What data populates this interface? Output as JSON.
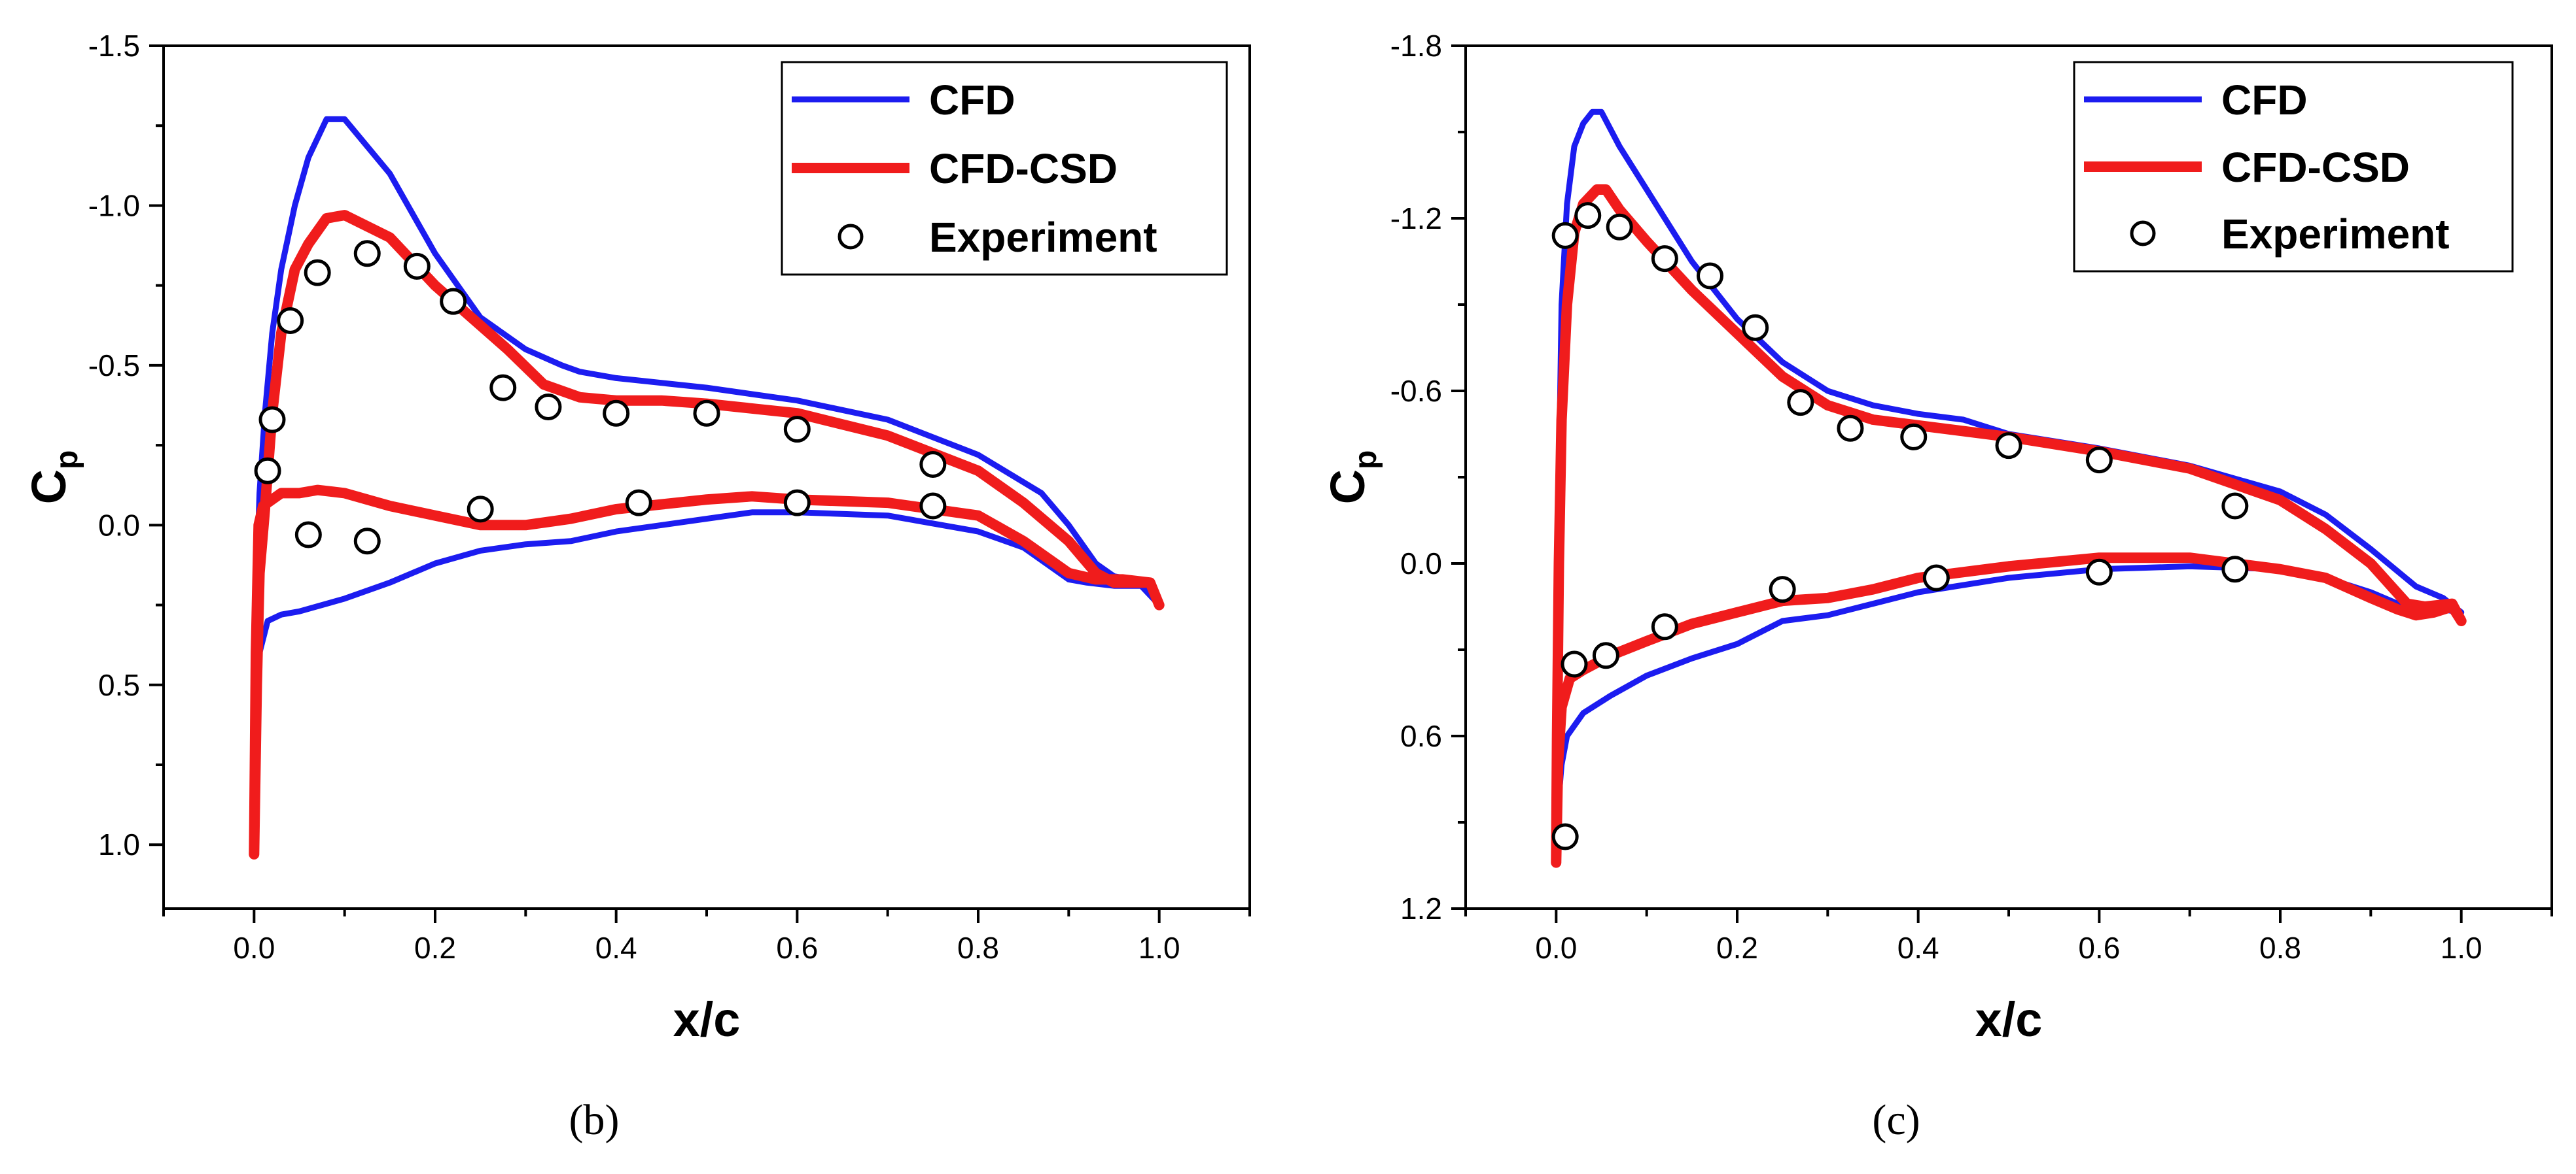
{
  "figure": {
    "colors": {
      "cfd": "#1c1cf0",
      "cfd_csd": "#f01c1c",
      "marker_fill": "#ffffff",
      "axis": "#000000"
    }
  },
  "chart_data": [
    {
      "type": "line",
      "panel_label": "(b)",
      "xlabel": "x/c",
      "ylabel_main": "C",
      "ylabel_sub": "p",
      "xlim": [
        -0.1,
        1.1
      ],
      "ylim": [
        1.2,
        -1.5
      ],
      "y_inverted": true,
      "x_ticks": [
        0.0,
        0.2,
        0.4,
        0.6,
        0.8,
        1.0
      ],
      "x_tick_labels": [
        "0.0",
        "0.2",
        "0.4",
        "0.6",
        "0.8",
        "1.0"
      ],
      "y_ticks": [
        -1.5,
        -1.0,
        -0.5,
        0.0,
        0.5,
        1.0
      ],
      "y_tick_labels": [
        "-1.5",
        "-1.0",
        "-0.5",
        "0.0",
        "0.5",
        "1.0"
      ],
      "legend": {
        "position": "top-right",
        "entries": [
          "CFD",
          "CFD-CSD",
          "Experiment"
        ]
      },
      "series": [
        {
          "name": "CFD",
          "kind": "line",
          "color": "#1c1cf0",
          "points": [
            [
              1.0,
              0.25
            ],
            [
              0.99,
              0.2
            ],
            [
              0.97,
              0.17
            ],
            [
              0.95,
              0.16
            ],
            [
              0.93,
              0.12
            ],
            [
              0.9,
              0.0
            ],
            [
              0.87,
              -0.1
            ],
            [
              0.8,
              -0.22
            ],
            [
              0.7,
              -0.33
            ],
            [
              0.6,
              -0.39
            ],
            [
              0.5,
              -0.43
            ],
            [
              0.4,
              -0.46
            ],
            [
              0.36,
              -0.48
            ],
            [
              0.34,
              -0.5
            ],
            [
              0.3,
              -0.55
            ],
            [
              0.25,
              -0.65
            ],
            [
              0.2,
              -0.85
            ],
            [
              0.15,
              -1.1
            ],
            [
              0.1,
              -1.27
            ],
            [
              0.08,
              -1.27
            ],
            [
              0.06,
              -1.15
            ],
            [
              0.045,
              -1.0
            ],
            [
              0.03,
              -0.8
            ],
            [
              0.02,
              -0.6
            ],
            [
              0.012,
              -0.35
            ],
            [
              0.006,
              -0.1
            ],
            [
              0.003,
              0.15
            ],
            [
              0.001,
              0.5
            ],
            [
              0.0,
              1.02
            ],
            [
              0.002,
              0.6
            ],
            [
              0.006,
              0.4
            ],
            [
              0.015,
              0.3
            ],
            [
              0.03,
              0.28
            ],
            [
              0.05,
              0.27
            ],
            [
              0.1,
              0.23
            ],
            [
              0.15,
              0.18
            ],
            [
              0.2,
              0.12
            ],
            [
              0.25,
              0.08
            ],
            [
              0.3,
              0.06
            ],
            [
              0.35,
              0.05
            ],
            [
              0.4,
              0.02
            ],
            [
              0.5,
              -0.02
            ],
            [
              0.55,
              -0.04
            ],
            [
              0.6,
              -0.04
            ],
            [
              0.7,
              -0.03
            ],
            [
              0.8,
              0.02
            ],
            [
              0.85,
              0.07
            ],
            [
              0.9,
              0.17
            ],
            [
              0.92,
              0.18
            ],
            [
              0.95,
              0.19
            ],
            [
              0.98,
              0.19
            ],
            [
              1.0,
              0.25
            ]
          ]
        },
        {
          "name": "CFD-CSD",
          "kind": "line",
          "color": "#f01c1c",
          "points": [
            [
              1.0,
              0.25
            ],
            [
              0.99,
              0.18
            ],
            [
              0.95,
              0.18
            ],
            [
              0.93,
              0.15
            ],
            [
              0.9,
              0.05
            ],
            [
              0.85,
              -0.07
            ],
            [
              0.8,
              -0.17
            ],
            [
              0.7,
              -0.28
            ],
            [
              0.6,
              -0.35
            ],
            [
              0.5,
              -0.38
            ],
            [
              0.45,
              -0.39
            ],
            [
              0.4,
              -0.39
            ],
            [
              0.36,
              -0.4
            ],
            [
              0.32,
              -0.44
            ],
            [
              0.28,
              -0.55
            ],
            [
              0.24,
              -0.65
            ],
            [
              0.2,
              -0.75
            ],
            [
              0.15,
              -0.9
            ],
            [
              0.1,
              -0.97
            ],
            [
              0.08,
              -0.96
            ],
            [
              0.06,
              -0.88
            ],
            [
              0.045,
              -0.8
            ],
            [
              0.03,
              -0.6
            ],
            [
              0.02,
              -0.35
            ],
            [
              0.012,
              -0.05
            ],
            [
              0.006,
              0.15
            ],
            [
              0.003,
              0.5
            ],
            [
              0.0,
              1.03
            ],
            [
              0.002,
              0.4
            ],
            [
              0.005,
              0.0
            ],
            [
              0.01,
              -0.06
            ],
            [
              0.03,
              -0.1
            ],
            [
              0.05,
              -0.1
            ],
            [
              0.07,
              -0.11
            ],
            [
              0.1,
              -0.1
            ],
            [
              0.15,
              -0.06
            ],
            [
              0.2,
              -0.03
            ],
            [
              0.25,
              0.0
            ],
            [
              0.3,
              0.0
            ],
            [
              0.35,
              -0.02
            ],
            [
              0.4,
              -0.05
            ],
            [
              0.5,
              -0.08
            ],
            [
              0.55,
              -0.09
            ],
            [
              0.6,
              -0.08
            ],
            [
              0.7,
              -0.07
            ],
            [
              0.8,
              -0.03
            ],
            [
              0.85,
              0.05
            ],
            [
              0.9,
              0.15
            ],
            [
              0.93,
              0.17
            ],
            [
              0.96,
              0.17
            ],
            [
              0.99,
              0.18
            ],
            [
              1.0,
              0.25
            ]
          ]
        },
        {
          "name": "Experiment",
          "kind": "markers",
          "color": "#000000",
          "points": [
            [
              0.015,
              -0.17
            ],
            [
              0.02,
              -0.33
            ],
            [
              0.04,
              -0.64
            ],
            [
              0.07,
              -0.79
            ],
            [
              0.125,
              -0.85
            ],
            [
              0.18,
              -0.81
            ],
            [
              0.22,
              -0.7
            ],
            [
              0.275,
              -0.43
            ],
            [
              0.325,
              -0.37
            ],
            [
              0.4,
              -0.35
            ],
            [
              0.5,
              -0.35
            ],
            [
              0.6,
              -0.3
            ],
            [
              0.75,
              -0.19
            ],
            [
              0.06,
              0.03
            ],
            [
              0.125,
              0.05
            ],
            [
              0.25,
              -0.05
            ],
            [
              0.425,
              -0.07
            ],
            [
              0.6,
              -0.07
            ],
            [
              0.75,
              -0.06
            ]
          ]
        }
      ]
    },
    {
      "type": "line",
      "panel_label": "(c)",
      "xlabel": "x/c",
      "ylabel_main": "C",
      "ylabel_sub": "p",
      "xlim": [
        -0.1,
        1.1
      ],
      "ylim": [
        1.2,
        -1.8
      ],
      "y_inverted": true,
      "x_ticks": [
        0.0,
        0.2,
        0.4,
        0.6,
        0.8,
        1.0
      ],
      "x_tick_labels": [
        "0.0",
        "0.2",
        "0.4",
        "0.6",
        "0.8",
        "1.0"
      ],
      "y_ticks": [
        -1.8,
        -1.2,
        -0.6,
        0.0,
        0.6,
        1.2
      ],
      "y_tick_labels": [
        "-1.8",
        "-1.2",
        "-0.6",
        "0.0",
        "0.6",
        "1.2"
      ],
      "legend": {
        "position": "top-right",
        "entries": [
          "CFD",
          "CFD-CSD",
          "Experiment"
        ]
      },
      "series": [
        {
          "name": "CFD",
          "kind": "line",
          "color": "#1c1cf0",
          "points": [
            [
              1.0,
              0.17
            ],
            [
              0.98,
              0.12
            ],
            [
              0.95,
              0.08
            ],
            [
              0.9,
              -0.05
            ],
            [
              0.85,
              -0.17
            ],
            [
              0.8,
              -0.25
            ],
            [
              0.7,
              -0.34
            ],
            [
              0.6,
              -0.4
            ],
            [
              0.5,
              -0.45
            ],
            [
              0.45,
              -0.5
            ],
            [
              0.4,
              -0.52
            ],
            [
              0.35,
              -0.55
            ],
            [
              0.3,
              -0.6
            ],
            [
              0.25,
              -0.7
            ],
            [
              0.2,
              -0.85
            ],
            [
              0.15,
              -1.05
            ],
            [
              0.1,
              -1.3
            ],
            [
              0.07,
              -1.45
            ],
            [
              0.05,
              -1.57
            ],
            [
              0.04,
              -1.57
            ],
            [
              0.03,
              -1.53
            ],
            [
              0.02,
              -1.45
            ],
            [
              0.012,
              -1.25
            ],
            [
              0.006,
              -0.9
            ],
            [
              0.003,
              -0.3
            ],
            [
              0.001,
              0.3
            ],
            [
              0.0,
              1.0
            ],
            [
              0.002,
              0.85
            ],
            [
              0.006,
              0.7
            ],
            [
              0.012,
              0.6
            ],
            [
              0.03,
              0.52
            ],
            [
              0.06,
              0.46
            ],
            [
              0.1,
              0.39
            ],
            [
              0.15,
              0.33
            ],
            [
              0.2,
              0.28
            ],
            [
              0.25,
              0.2
            ],
            [
              0.3,
              0.18
            ],
            [
              0.35,
              0.14
            ],
            [
              0.4,
              0.1
            ],
            [
              0.5,
              0.05
            ],
            [
              0.6,
              0.02
            ],
            [
              0.7,
              0.01
            ],
            [
              0.8,
              0.02
            ],
            [
              0.85,
              0.05
            ],
            [
              0.9,
              0.1
            ],
            [
              0.93,
              0.14
            ],
            [
              0.96,
              0.16
            ],
            [
              0.98,
              0.16
            ],
            [
              1.0,
              0.17
            ]
          ]
        },
        {
          "name": "CFD-CSD",
          "kind": "line",
          "color": "#f01c1c",
          "points": [
            [
              1.0,
              0.2
            ],
            [
              0.99,
              0.14
            ],
            [
              0.96,
              0.15
            ],
            [
              0.94,
              0.14
            ],
            [
              0.9,
              0.0
            ],
            [
              0.85,
              -0.12
            ],
            [
              0.8,
              -0.22
            ],
            [
              0.7,
              -0.33
            ],
            [
              0.6,
              -0.39
            ],
            [
              0.5,
              -0.44
            ],
            [
              0.45,
              -0.46
            ],
            [
              0.4,
              -0.48
            ],
            [
              0.35,
              -0.5
            ],
            [
              0.3,
              -0.55
            ],
            [
              0.25,
              -0.65
            ],
            [
              0.2,
              -0.8
            ],
            [
              0.15,
              -0.95
            ],
            [
              0.1,
              -1.12
            ],
            [
              0.07,
              -1.23
            ],
            [
              0.055,
              -1.3
            ],
            [
              0.045,
              -1.3
            ],
            [
              0.03,
              -1.25
            ],
            [
              0.02,
              -1.15
            ],
            [
              0.012,
              -0.9
            ],
            [
              0.006,
              -0.5
            ],
            [
              0.003,
              0.0
            ],
            [
              0.001,
              0.6
            ],
            [
              0.0,
              1.04
            ],
            [
              0.002,
              0.7
            ],
            [
              0.006,
              0.5
            ],
            [
              0.015,
              0.4
            ],
            [
              0.03,
              0.37
            ],
            [
              0.06,
              0.32
            ],
            [
              0.1,
              0.27
            ],
            [
              0.15,
              0.21
            ],
            [
              0.2,
              0.17
            ],
            [
              0.25,
              0.13
            ],
            [
              0.3,
              0.12
            ],
            [
              0.35,
              0.09
            ],
            [
              0.4,
              0.05
            ],
            [
              0.5,
              0.01
            ],
            [
              0.6,
              -0.02
            ],
            [
              0.7,
              -0.02
            ],
            [
              0.8,
              0.02
            ],
            [
              0.85,
              0.05
            ],
            [
              0.9,
              0.12
            ],
            [
              0.93,
              0.16
            ],
            [
              0.95,
              0.18
            ],
            [
              0.97,
              0.17
            ],
            [
              0.99,
              0.15
            ],
            [
              1.0,
              0.2
            ]
          ]
        },
        {
          "name": "Experiment",
          "kind": "markers",
          "color": "#000000",
          "points": [
            [
              0.01,
              -1.14
            ],
            [
              0.035,
              -1.21
            ],
            [
              0.07,
              -1.17
            ],
            [
              0.12,
              -1.06
            ],
            [
              0.17,
              -1.0
            ],
            [
              0.22,
              -0.82
            ],
            [
              0.27,
              -0.56
            ],
            [
              0.325,
              -0.47
            ],
            [
              0.395,
              -0.44
            ],
            [
              0.5,
              -0.41
            ],
            [
              0.6,
              -0.36
            ],
            [
              0.75,
              -0.2
            ],
            [
              0.01,
              0.95
            ],
            [
              0.02,
              0.35
            ],
            [
              0.055,
              0.32
            ],
            [
              0.12,
              0.22
            ],
            [
              0.25,
              0.09
            ],
            [
              0.42,
              0.05
            ],
            [
              0.6,
              0.03
            ],
            [
              0.75,
              0.02
            ]
          ]
        }
      ]
    }
  ]
}
